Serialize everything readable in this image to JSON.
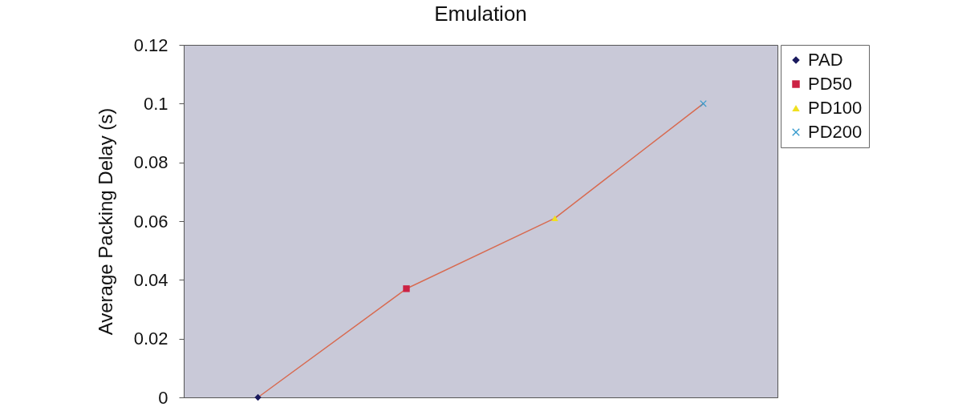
{
  "chart_data": {
    "type": "line",
    "title": "Emulation",
    "ylabel": "Average Packing Delay (s)",
    "categories": [
      null,
      null,
      null,
      null
    ],
    "ylim": [
      0,
      0.12
    ],
    "yticks": [
      0,
      0.02,
      0.04,
      0.06,
      0.08,
      0.1,
      0.12
    ],
    "grid": false,
    "legend": "right",
    "tick_labels": "y",
    "series": [
      {
        "type": "line",
        "color": "#d86a50",
        "marker": "none",
        "line_style": "solid",
        "values": [
          0,
          0.037,
          0.061,
          0.1
        ]
      },
      {
        "type": "scatter",
        "name": "PAD",
        "color": "#1a1a5e",
        "marker": "diamond",
        "values": [
          0,
          null,
          null,
          null
        ]
      },
      {
        "type": "scatter",
        "name": "PD50",
        "color": "#cc2244",
        "marker": "square",
        "values": [
          null,
          0.037,
          null,
          null
        ]
      },
      {
        "type": "scatter",
        "name": "PD100",
        "color": "#f0e020",
        "marker": "triangle",
        "values": [
          null,
          null,
          0.061,
          null
        ]
      },
      {
        "type": "scatter",
        "name": "PD200",
        "color": "#3399cc",
        "marker": "cross",
        "values": [
          null,
          null,
          null,
          0.1
        ]
      }
    ]
  }
}
